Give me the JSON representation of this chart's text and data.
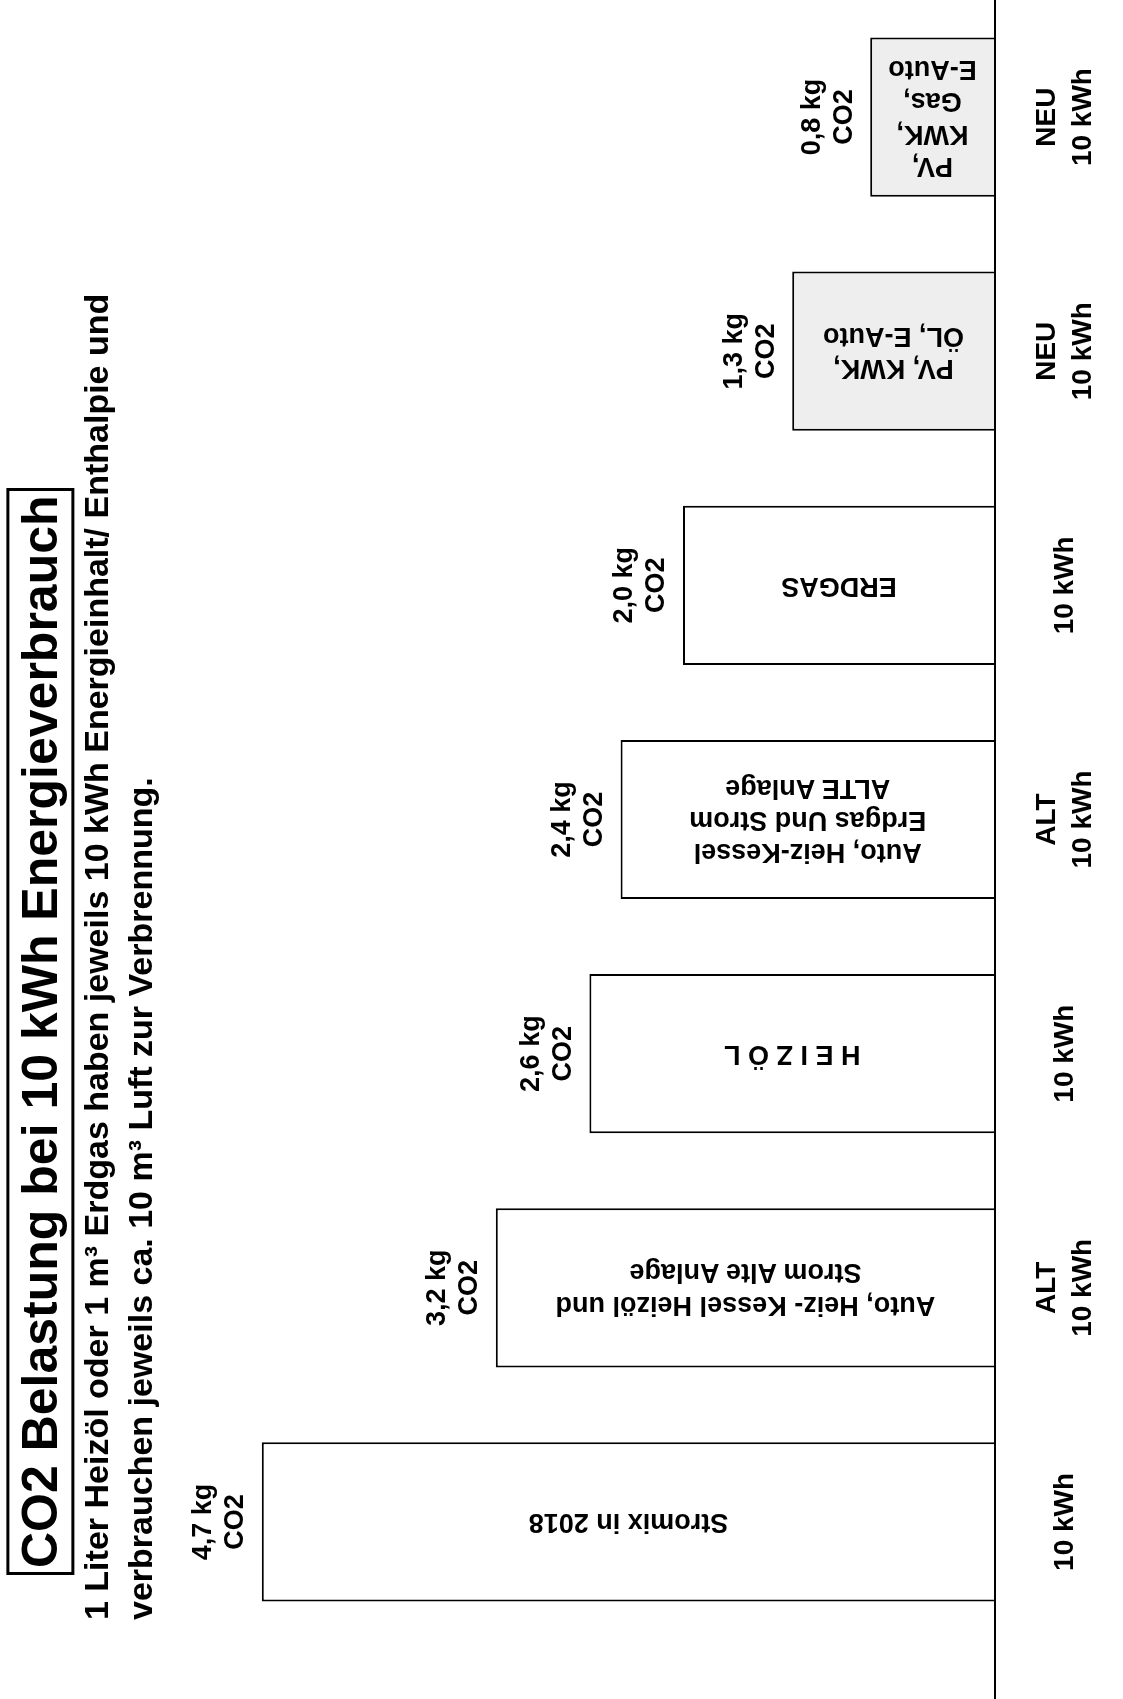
{
  "chart_data": {
    "type": "bar",
    "orientation": "horizontal",
    "title": "CO2 Belastung bei 10 kWh Energieverbrauch",
    "subtitle": "1 Liter Heizöl oder 1 m³ Erdgas haben jeweils 10 kWh Energieinhalt/ Enthalpie und verbrauchen jeweils ca. 10 m³ Luft zur Verbrennung.",
    "categories": [
      "NEU 10 kWh",
      "NEU 10 kWh",
      "10 kWh",
      "ALT 10 kWh",
      "10 kWh",
      "ALT 10 kWh",
      "10 kWh"
    ],
    "values": [
      0.8,
      1.3,
      2.0,
      2.4,
      2.6,
      3.2,
      4.7
    ],
    "value_labels": [
      "0,8 kg CO2",
      "1,3 kg CO2",
      "2,0 kg CO2",
      "2,4 kg CO2",
      "2,6 kg CO2",
      "3,2 kg CO2",
      "4,7 kg CO2"
    ],
    "colors": [
      "#eeeeee",
      "#eeeeee",
      "#ffffff",
      "#ffffff",
      "#ffffff",
      "#ffffff",
      "#ffffff"
    ],
    "annotations": [
      "PV, KWK, Gas, E-Auto",
      "PV, KWK, ÖL, E-Auto",
      "ERDGAS",
      "Auto, Heiz-Kessel Erdgas Und Strom ALTE Anlage",
      "H E I Z Ö L",
      "Auto, Heiz- Kessel Heizöl und Strom Alte Anlage",
      "Stromix in 2018"
    ],
    "legend": false
  }
}
